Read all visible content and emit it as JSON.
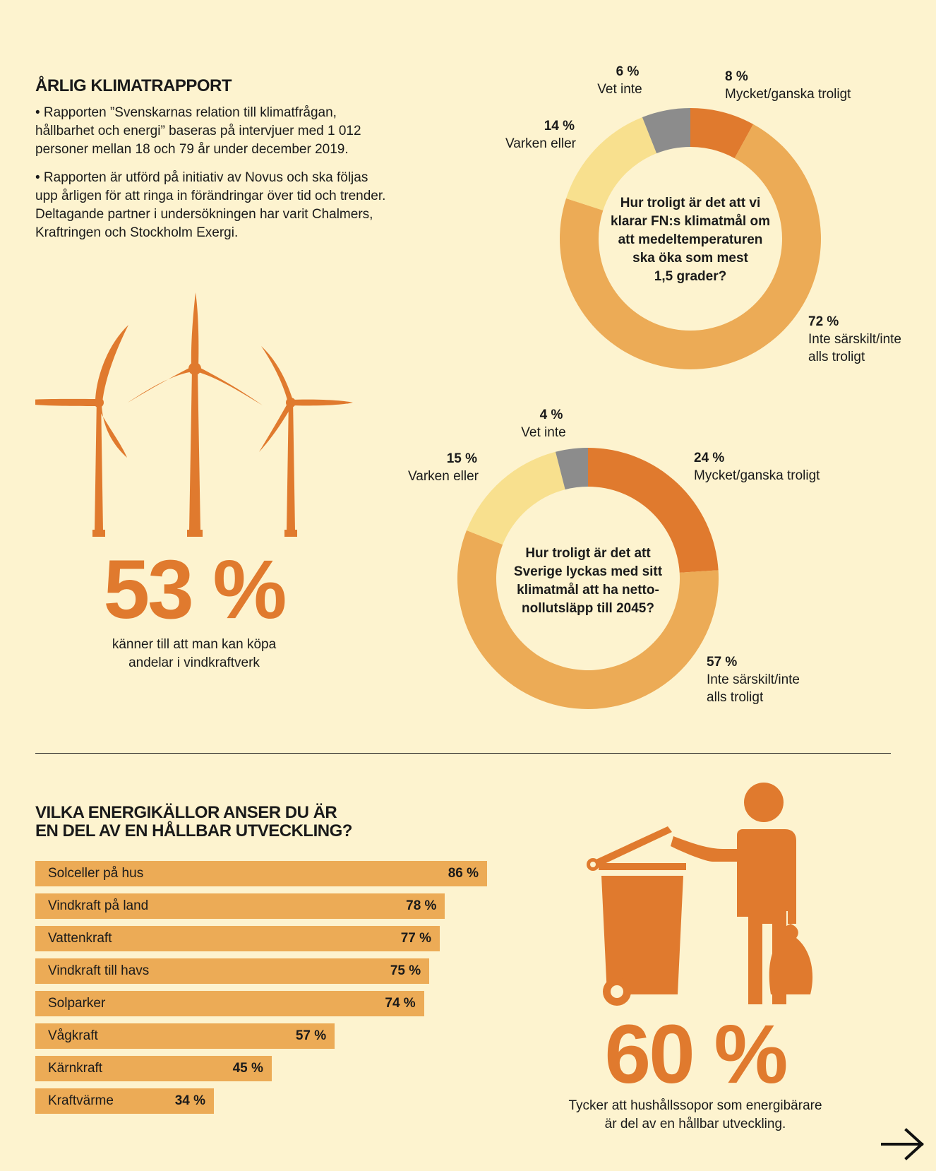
{
  "intro": {
    "title": "ÅRLIG KLIMATRAPPORT",
    "p1": "• Rapporten ”Svenskarnas relation till klimatfrågan, hållbarhet och energi” baseras på intervjuer med 1 012 personer mellan 18 och 79 år under december 2019.",
    "p2": "• Rapporten är utförd på initiativ av Novus och ska följas upp årligen för att ringa in förändringar över tid och trender. Deltagande partner i undersökningen har varit Chalmers, Kraftringen och Stockholm Exergi."
  },
  "stat_wind": {
    "value": "53 %",
    "caption_line1": "känner till att man kan köpa",
    "caption_line2": "andelar i vindkraftverk"
  },
  "stat_waste": {
    "value": "60 %",
    "caption_line1": "Tycker att hushållssopor som energibärare",
    "caption_line2": "är del av en hållbar utveckling."
  },
  "colors": {
    "background": "#fdf3cf",
    "dark_orange": "#e07a2e",
    "light_orange": "#ecab56",
    "pale_yellow": "#f8e08e",
    "gray": "#8c8c8c"
  },
  "icons": {
    "wind": "wind-turbines-icon",
    "waste": "person-with-trash-bin-icon",
    "next": "arrow-right-icon"
  },
  "chart_data": [
    {
      "type": "pie",
      "donut": true,
      "title": "Hur troligt är det att vi klarar FN:s klimatmål om att medeltemperaturen ska öka som mest 1,5 grader?",
      "title_lines": [
        "Hur troligt är det att vi",
        "klarar FN:s klimatmål om",
        "att medeltemperaturen",
        "ska öka som mest",
        "1,5 grader?"
      ],
      "slices": [
        {
          "label": "Mycket/ganska troligt",
          "value": 8,
          "pct_label": "8 %",
          "color": "#e07a2e"
        },
        {
          "label_lines": [
            "Inte särskilt/inte",
            "alls troligt"
          ],
          "value": 72,
          "pct_label": "72 %",
          "color": "#ecab56"
        },
        {
          "label": "Varken eller",
          "value": 14,
          "pct_label": "14 %",
          "color": "#f8e08e"
        },
        {
          "label": "Vet inte",
          "value": 6,
          "pct_label": "6 %",
          "color": "#8c8c8c"
        }
      ]
    },
    {
      "type": "pie",
      "donut": true,
      "title": "Hur troligt är det att Sverige lyckas med sitt klimatmål att ha netto-nollutsläpp till 2045?",
      "title_lines": [
        "Hur troligt är det att",
        "Sverige lyckas med sitt",
        "klimatmål att ha netto-",
        "nollutsläpp till 2045?"
      ],
      "slices": [
        {
          "label": "Mycket/ganska troligt",
          "value": 24,
          "pct_label": "24 %",
          "color": "#e07a2e"
        },
        {
          "label_lines": [
            "Inte särskilt/inte",
            "alls troligt"
          ],
          "value": 57,
          "pct_label": "57 %",
          "color": "#ecab56"
        },
        {
          "label": "Varken eller",
          "value": 15,
          "pct_label": "15 %",
          "color": "#f8e08e"
        },
        {
          "label": "Vet inte",
          "value": 4,
          "pct_label": "4 %",
          "color": "#8c8c8c"
        }
      ]
    },
    {
      "type": "bar",
      "orientation": "horizontal",
      "title_line1": "VILKA ENERGIKÄLLOR ANSER DU  ÄR",
      "title_line2": "EN DEL AV EN HÅLLBAR UTVECKLING?",
      "xlim": [
        0,
        86
      ],
      "categories": [
        "Solceller på hus",
        "Vindkraft på land",
        "Vattenkraft",
        "Vindkraft till havs",
        "Solparker",
        "Vågkraft",
        "Kärnkraft",
        "Kraftvärme"
      ],
      "values": [
        86,
        78,
        77,
        75,
        74,
        57,
        45,
        34
      ],
      "value_labels": [
        "86 %",
        "78 %",
        "77 %",
        "75 %",
        "74 %",
        "57 %",
        "45 %",
        "34 %"
      ],
      "color": "#ecab56"
    }
  ]
}
